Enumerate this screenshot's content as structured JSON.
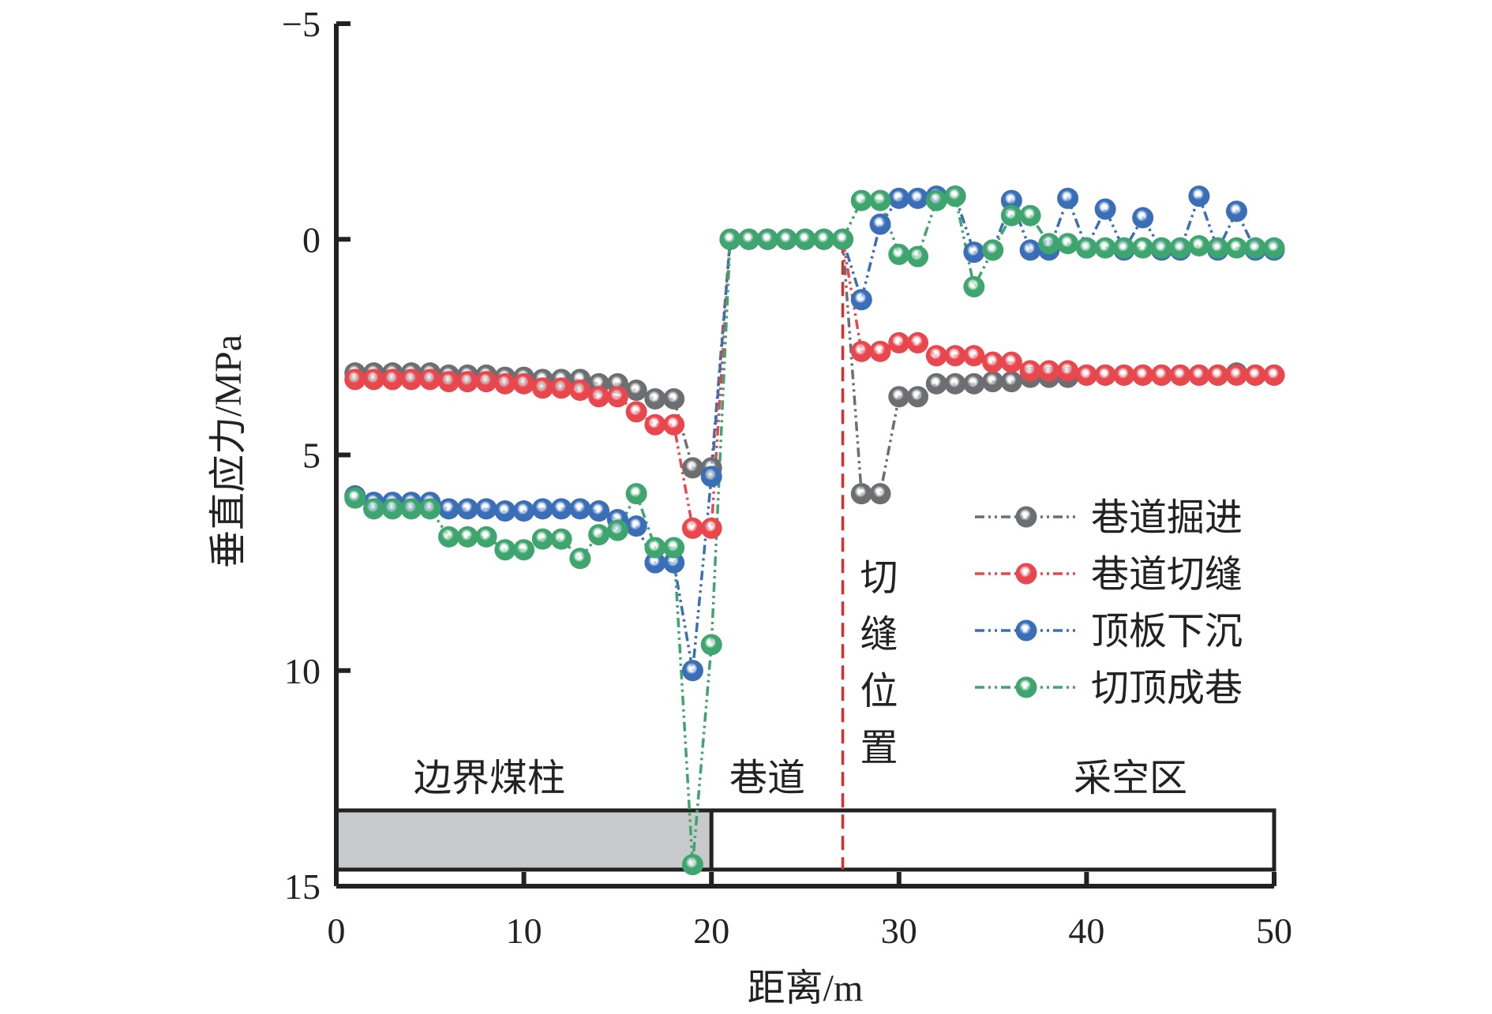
{
  "chart_data": {
    "type": "line",
    "title": "",
    "xlabel": "距离/m",
    "ylabel": "垂直应力/MPa",
    "xlim": [
      0,
      50
    ],
    "ylim": [
      15,
      -5
    ],
    "y_inverted": true,
    "xticks": [
      "0",
      "10",
      "20",
      "30",
      "40",
      "50"
    ],
    "yticks": [
      "−5",
      "0",
      "5",
      "10",
      "15"
    ],
    "x": [
      1,
      2,
      3,
      4,
      5,
      6,
      7,
      8,
      9,
      10,
      11,
      12,
      13,
      14,
      15,
      16,
      17,
      18,
      19,
      20,
      21,
      22,
      23,
      24,
      25,
      26,
      27,
      28,
      29,
      30,
      31,
      32,
      33,
      34,
      35,
      36,
      37,
      38,
      39,
      40,
      41,
      42,
      43,
      44,
      45,
      46,
      47,
      48,
      49,
      50
    ],
    "series": [
      {
        "name": "巷道掘进",
        "color": "#6d6e71",
        "values": [
          3.1,
          3.1,
          3.1,
          3.1,
          3.1,
          3.15,
          3.15,
          3.15,
          3.2,
          3.2,
          3.25,
          3.25,
          3.25,
          3.35,
          3.35,
          3.5,
          3.7,
          3.7,
          5.3,
          5.3,
          0,
          0,
          0,
          0,
          0,
          0,
          0,
          5.9,
          5.9,
          3.65,
          3.65,
          3.35,
          3.35,
          3.35,
          3.3,
          3.3,
          3.2,
          3.2,
          3.2,
          3.15,
          3.15,
          3.15,
          3.15,
          3.15,
          3.15,
          3.15,
          3.15,
          3.1,
          3.15,
          3.15
        ]
      },
      {
        "name": "巷道切缝",
        "color": "#e8474e",
        "values": [
          3.25,
          3.25,
          3.25,
          3.25,
          3.25,
          3.3,
          3.3,
          3.3,
          3.35,
          3.35,
          3.45,
          3.45,
          3.5,
          3.65,
          3.65,
          4.0,
          4.3,
          4.3,
          6.7,
          6.7,
          0,
          0,
          0,
          0,
          0,
          0,
          0,
          2.6,
          2.6,
          2.4,
          2.4,
          2.7,
          2.7,
          2.7,
          2.85,
          2.85,
          3.05,
          3.05,
          3.05,
          3.15,
          3.15,
          3.15,
          3.15,
          3.15,
          3.15,
          3.15,
          3.15,
          3.15,
          3.15,
          3.15
        ]
      },
      {
        "name": "顶板下沉",
        "color": "#3a6fb8",
        "values": [
          5.95,
          6.1,
          6.1,
          6.1,
          6.1,
          6.25,
          6.25,
          6.25,
          6.3,
          6.3,
          6.25,
          6.25,
          6.25,
          6.3,
          6.5,
          6.65,
          7.5,
          7.5,
          10.0,
          5.5,
          0,
          0,
          0,
          0,
          0,
          0,
          0,
          1.4,
          -0.35,
          -0.95,
          -0.95,
          -1.0,
          -1.0,
          0.3,
          0.25,
          -0.9,
          0.25,
          0.25,
          -0.95,
          0.2,
          -0.7,
          0.25,
          -0.5,
          0.25,
          0.25,
          -1.0,
          0.25,
          -0.65,
          0.25,
          0.25
        ]
      },
      {
        "name": "切顶成巷",
        "color": "#3fa56e",
        "values": [
          6.0,
          6.25,
          6.25,
          6.25,
          6.25,
          6.9,
          6.9,
          6.9,
          7.2,
          7.2,
          6.95,
          6.95,
          7.4,
          6.85,
          6.75,
          5.9,
          7.15,
          7.15,
          14.5,
          9.4,
          0,
          0,
          0,
          0,
          0,
          0,
          0,
          -0.9,
          -0.9,
          0.35,
          0.4,
          -0.9,
          -1.0,
          1.1,
          0.25,
          -0.55,
          -0.55,
          0.1,
          0.1,
          0.2,
          0.2,
          0.2,
          0.2,
          0.2,
          0.2,
          0.15,
          0.2,
          0.2,
          0.2,
          0.2
        ]
      }
    ],
    "annotations": {
      "cut_line_x": 27,
      "cut_label": "切缝位置",
      "zones": [
        {
          "label": "边界煤柱",
          "from": 0,
          "to": 20,
          "fill": "#c8c9cb"
        },
        {
          "label": "巷道",
          "from": 20,
          "to": 27,
          "fill": "#ffffff"
        },
        {
          "label": "采空区",
          "from": 27,
          "to": 50,
          "fill": "#ffffff"
        }
      ]
    },
    "legend_position": "right-middle",
    "grid": false
  }
}
